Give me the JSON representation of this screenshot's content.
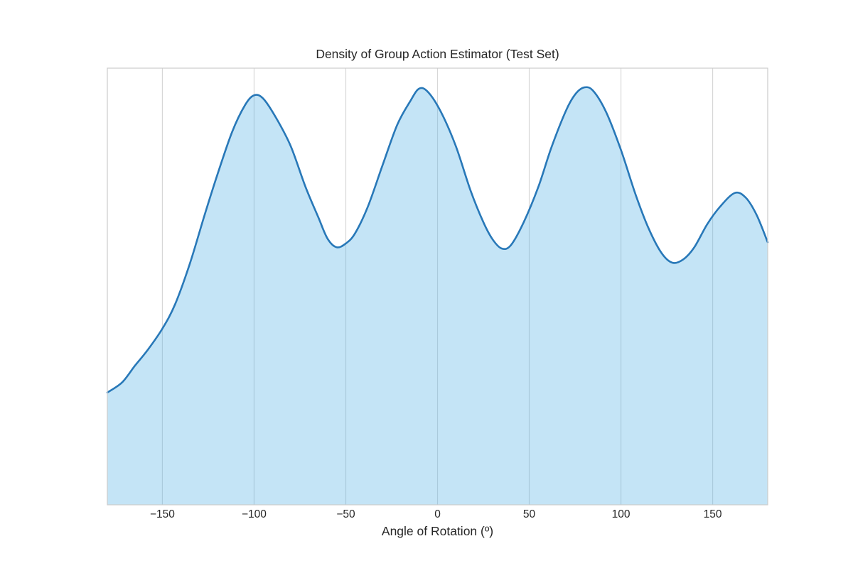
{
  "figure": {
    "background_color": "#ffffff",
    "text_color": "#262626",
    "grid_color": "#d7d7d7",
    "spine_color": "#cccccc"
  },
  "chart_data": {
    "type": "area",
    "title": "Density of Group Action Estimator (Test Set)",
    "xlabel": "Angle of Rotation (º)",
    "ylabel": "",
    "xlim": [
      -180,
      180
    ],
    "ylim": [
      0,
      1.046
    ],
    "grid": "vertical-only",
    "legend_position": "none",
    "y_axis_ticks": "none",
    "x_ticks": [
      {
        "value": -150,
        "label": "−150"
      },
      {
        "value": -100,
        "label": "−100"
      },
      {
        "value": -50,
        "label": "−50"
      },
      {
        "value": 0,
        "label": "0"
      },
      {
        "value": 50,
        "label": "50"
      },
      {
        "value": 100,
        "label": "100"
      },
      {
        "value": 150,
        "label": "150"
      }
    ],
    "series": [
      {
        "name": "kde-density",
        "line_color": "#2878b8",
        "line_width": 2.6,
        "fill_color": "rgba(86,177,229,0.35)",
        "x": [
          -180,
          -172,
          -165,
          -158,
          -150,
          -143,
          -135,
          -127,
          -120,
          -112,
          -105,
          -100,
          -95,
          -88,
          -80,
          -72,
          -65,
          -60,
          -55,
          -50,
          -45,
          -38,
          -30,
          -22,
          -15,
          -10,
          -5,
          2,
          10,
          18,
          25,
          30,
          35,
          40,
          47,
          55,
          62,
          70,
          75,
          80,
          85,
          92,
          100,
          108,
          115,
          122,
          128,
          134,
          140,
          147,
          154,
          162,
          168,
          174,
          180
        ],
        "y": [
          0.269,
          0.293,
          0.333,
          0.371,
          0.422,
          0.481,
          0.578,
          0.694,
          0.791,
          0.893,
          0.957,
          0.981,
          0.973,
          0.927,
          0.859,
          0.762,
          0.689,
          0.638,
          0.617,
          0.626,
          0.65,
          0.714,
          0.813,
          0.91,
          0.966,
          0.997,
          0.988,
          0.94,
          0.859,
          0.753,
          0.677,
          0.636,
          0.614,
          0.622,
          0.677,
          0.762,
          0.855,
          0.944,
          0.983,
          1.0,
          0.991,
          0.94,
          0.85,
          0.743,
          0.663,
          0.604,
          0.58,
          0.588,
          0.617,
          0.672,
          0.714,
          0.747,
          0.736,
          0.694,
          0.629
        ]
      }
    ],
    "annotations": {
      "peaks_deg": [
        -100,
        -10,
        80,
        162
      ],
      "troughs_deg": [
        -55,
        35,
        128
      ]
    }
  }
}
